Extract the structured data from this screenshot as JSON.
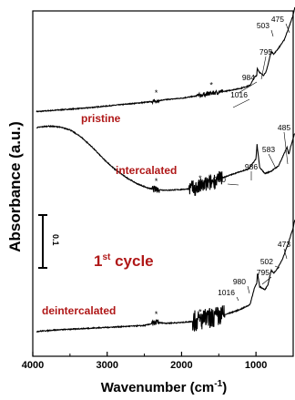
{
  "chart_data": {
    "type": "line",
    "title": "",
    "xlabel": "Wavenumber (cm-1)",
    "xlabel_main": "Wavenumber (cm",
    "xlabel_sup": "-1",
    "xlabel_end": ")",
    "ylabel": "Absorbance (a.u.)",
    "xlim": [
      4000,
      500
    ],
    "x_reversed": true,
    "xticks": [
      4000,
      3000,
      2000,
      1000
    ],
    "xtick_labels": [
      "4000",
      "3000",
      "2000",
      "1000"
    ],
    "grid": false,
    "legend": "none",
    "scale_bar_label": "0.1",
    "cycle_label_main": "1",
    "cycle_label_sup": "st",
    "cycle_label_end": " cycle",
    "star_symbol": "*",
    "series": [
      {
        "name": "pristine",
        "color": "#000000",
        "points": [
          [
            3950,
            0.07
          ],
          [
            3700,
            0.09
          ],
          [
            3500,
            0.105
          ],
          [
            3300,
            0.12
          ],
          [
            3100,
            0.14
          ],
          [
            2900,
            0.16
          ],
          [
            2700,
            0.18
          ],
          [
            2500,
            0.2
          ],
          [
            2340,
            0.22
          ],
          [
            2200,
            0.24
          ],
          [
            2000,
            0.26
          ],
          [
            1800,
            0.29
          ],
          [
            1600,
            0.33
          ],
          [
            1400,
            0.36
          ],
          [
            1200,
            0.4
          ],
          [
            1080,
            0.44
          ],
          [
            1016,
            0.56
          ],
          [
            990,
            0.58
          ],
          [
            984,
            0.68
          ],
          [
            950,
            0.62
          ],
          [
            900,
            0.58
          ],
          [
            860,
            0.64
          ],
          [
            795,
            0.92
          ],
          [
            760,
            0.88
          ],
          [
            700,
            0.96
          ],
          [
            620,
            1.08
          ],
          [
            560,
            1.25
          ],
          [
            503,
            1.42
          ],
          [
            475,
            1.55
          ]
        ],
        "noise_regions": [
          [
            1800,
            1450,
            0.06
          ],
          [
            2400,
            2300,
            0.04
          ]
        ],
        "peaks": [
          {
            "x": 1016,
            "label": "1016"
          },
          {
            "x": 984,
            "label": "984"
          },
          {
            "x": 795,
            "label": "795"
          },
          {
            "x": 503,
            "label": "503"
          },
          {
            "x": 475,
            "label": "475"
          }
        ],
        "stars": [
          2340,
          1600
        ]
      },
      {
        "name": "intercalated",
        "color": "#000000",
        "points": [
          [
            3950,
            1.15
          ],
          [
            3800,
            1.17
          ],
          [
            3650,
            1.16
          ],
          [
            3500,
            1.12
          ],
          [
            3350,
            1.02
          ],
          [
            3200,
            0.88
          ],
          [
            3050,
            0.72
          ],
          [
            2900,
            0.58
          ],
          [
            2750,
            0.47
          ],
          [
            2600,
            0.38
          ],
          [
            2450,
            0.32
          ],
          [
            2340,
            0.3
          ],
          [
            2200,
            0.29
          ],
          [
            2000,
            0.3
          ],
          [
            1800,
            0.32
          ],
          [
            1600,
            0.4
          ],
          [
            1400,
            0.48
          ],
          [
            1200,
            0.55
          ],
          [
            1100,
            0.58
          ],
          [
            1000,
            0.72
          ],
          [
            986,
            0.92
          ],
          [
            950,
            0.6
          ],
          [
            880,
            0.52
          ],
          [
            800,
            0.55
          ],
          [
            700,
            0.62
          ],
          [
            640,
            0.75
          ],
          [
            583,
            0.88
          ],
          [
            560,
            0.78
          ],
          [
            530,
            0.9
          ],
          [
            485,
            1.06
          ]
        ],
        "noise_regions": [
          [
            1900,
            1450,
            0.22
          ],
          [
            2400,
            2300,
            0.08
          ]
        ],
        "peaks": [
          {
            "x": 1000,
            "label": "1000"
          },
          {
            "x": 986,
            "label": "986"
          },
          {
            "x": 583,
            "label": "583"
          },
          {
            "x": 485,
            "label": "485"
          }
        ],
        "stars": [
          2340,
          1750
        ]
      },
      {
        "name": "deintercalated",
        "color": "#000000",
        "points": [
          [
            3950,
            0.1
          ],
          [
            3700,
            0.12
          ],
          [
            3500,
            0.13
          ],
          [
            3300,
            0.14
          ],
          [
            3100,
            0.15
          ],
          [
            2900,
            0.16
          ],
          [
            2700,
            0.17
          ],
          [
            2500,
            0.18
          ],
          [
            2340,
            0.22
          ],
          [
            2200,
            0.21
          ],
          [
            2000,
            0.22
          ],
          [
            1800,
            0.24
          ],
          [
            1600,
            0.28
          ],
          [
            1400,
            0.33
          ],
          [
            1200,
            0.4
          ],
          [
            1080,
            0.46
          ],
          [
            1016,
            0.7
          ],
          [
            990,
            0.74
          ],
          [
            980,
            0.88
          ],
          [
            950,
            0.7
          ],
          [
            880,
            0.66
          ],
          [
            840,
            0.72
          ],
          [
            795,
            0.92
          ],
          [
            760,
            0.88
          ],
          [
            700,
            0.96
          ],
          [
            640,
            1.08
          ],
          [
            560,
            1.3
          ],
          [
            502,
            1.48
          ],
          [
            473,
            1.62
          ]
        ],
        "noise_regions": [
          [
            1850,
            1420,
            0.28
          ],
          [
            2400,
            2300,
            0.07
          ]
        ],
        "peaks": [
          {
            "x": 1016,
            "label": "1016"
          },
          {
            "x": 980,
            "label": "980"
          },
          {
            "x": 795,
            "label": "795"
          },
          {
            "x": 502,
            "label": "502"
          },
          {
            "x": 473,
            "label": "473"
          }
        ],
        "stars": [
          2340,
          1750
        ]
      }
    ]
  }
}
